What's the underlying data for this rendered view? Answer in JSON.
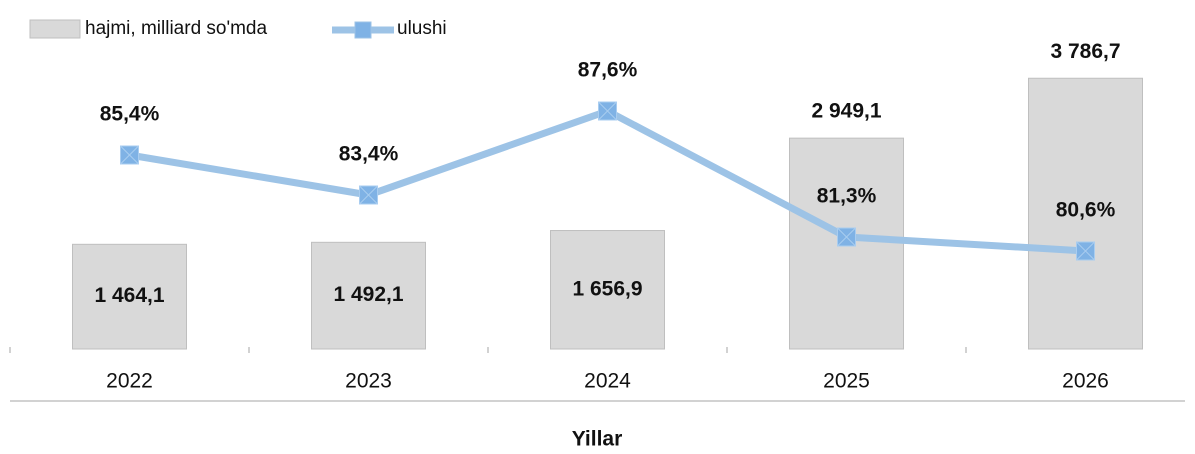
{
  "chart_data": {
    "type": "bar_line",
    "x_label": "Yillar",
    "categories": [
      "2022",
      "2023",
      "2024",
      "2025",
      "2026"
    ],
    "series": [
      {
        "name": "hajmi, milliard so'mda",
        "type": "bar",
        "color": "#d9d9d9",
        "values": [
          1464.1,
          1492.1,
          1656.9,
          2949.1,
          3786.7
        ],
        "value_labels": [
          "1 464,1",
          "1 492,1",
          "1 656,9",
          "2 949,1",
          "3 786,7"
        ]
      },
      {
        "name": "ulushi",
        "type": "line",
        "axis": "y2",
        "color": "#9dc3e6",
        "values": [
          85.4,
          83.4,
          87.6,
          81.3,
          80.6
        ],
        "value_labels": [
          "85,4%",
          "83,4%",
          "87,6%",
          "81,3%",
          "80,6%"
        ]
      }
    ],
    "ylim": [
      0,
      4000
    ],
    "y2lim": [
      75.7,
      90
    ]
  }
}
